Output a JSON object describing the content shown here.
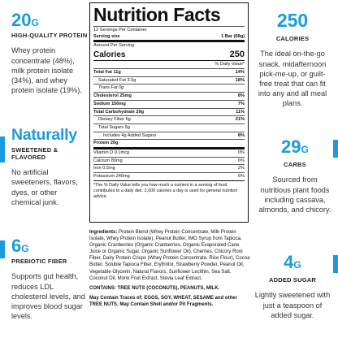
{
  "left": {
    "protein": {
      "value": "20",
      "unit": "G",
      "label": "HIGH-QUALITY PROTEIN",
      "desc": "Whey protein concentrate (48%), milk protein isolate (34%), and whey protein isolate (19%)."
    },
    "natural": {
      "value": "Naturally",
      "label": "SWEETENED & FLAVORED",
      "desc": "No artificial sweeteners, flavors, dyes, or other chemical junk."
    },
    "fiber": {
      "value": "6",
      "unit": "G",
      "label": "PREBIOTIC FIBER",
      "desc": "Supports gut health, reduces LDL cholesterol levels, and improves blood sugar levels."
    }
  },
  "right": {
    "calories": {
      "value": "250",
      "label": "CALORIES",
      "desc": "The ideal on-the-go snack, midafternoon pick-me-up, or guilt-free treat that can fit into any and all meal plans."
    },
    "carbs": {
      "value": "29",
      "unit": "G",
      "label": "CARBS",
      "desc": "Sourced from nutritious plant foods including cassava, almonds, and chicory."
    },
    "sugar": {
      "value": "4",
      "unit": "G",
      "label": "ADDED SUGAR",
      "desc": "Lightly sweetened with just a teaspoon of added sugar."
    }
  },
  "nutrition": {
    "title": "Nutrition Facts",
    "servings": "12 Servings Per Container",
    "serving_size_label": "Serving size",
    "serving_size": "1 Bar (68g)",
    "amount_per_serving": "Amount Per Serving",
    "calories_label": "Calories",
    "calories": "250",
    "dv_header": "% Daily Value*",
    "rows": [
      {
        "label": "Total Fat 11g",
        "dv": "14%"
      },
      {
        "label": "Saturated Fat 3.5g",
        "dv": "18%"
      },
      {
        "label": "Trans Fat 0g",
        "dv": ""
      },
      {
        "label": "Cholesterol 25mg",
        "dv": "8%"
      },
      {
        "label": "Sodium 150mg",
        "dv": "7%"
      },
      {
        "label": "Total Carbohydrate 29g",
        "dv": "11%"
      },
      {
        "label": "Dietary Fiber 6g",
        "dv": "21%"
      },
      {
        "label": "Total Sugars 9g",
        "dv": ""
      },
      {
        "label": "Includes 4g Added Sugars",
        "dv": "8%"
      },
      {
        "label": "Protein 20g",
        "dv": ""
      },
      {
        "label": "Vitamin D 0.1mcg",
        "dv": "0%"
      },
      {
        "label": "Calcium 80mg",
        "dv": "6%"
      },
      {
        "label": "Iron 0.5mg",
        "dv": "2%"
      },
      {
        "label": "Potassium 240mg",
        "dv": "6%"
      }
    ],
    "footnote": "*The % Daily Value tells you how much a nutrient in a serving of food contributes to a daily diet. 2,000 calories a day is used for general nutrition advice."
  },
  "ingredients": {
    "label": "Ingredients:",
    "text": "Protein Blend (Whey Protein Concentrate, Milk Protein Isolate, Whey Protein Isolate), Peanut Butter, IMO Syrup from Tapioca, Organic Cranberries (Organic Cranberries, Organic Evaporated Cane Juice or Organic Sugar, Organic Sunflower Oil), Cherries, Chicory Root Fiber, Dairy Protein Crisps (Whey Protein Concentrate, Rice Flour), Cocoa Butter, Soluble Tapioca Fiber, Erythritol, Strawberry Powder, Peanut Oil, Vegetable Glycerin, Natural Flavors, Sunflower Lecithin, Sea Salt, Coconut Oil, Monk Fruit Extract, Stevia Leaf Extract.",
    "contains": "CONTAINS: TREE NUTS (COCONUTS), PEANUTS, MILK.",
    "traces": "May Contain Traces of: EGGS, SOY, WHEAT, SESAME and other TREE NUTS. May Contain Shell and/or Pit Fragments."
  }
}
